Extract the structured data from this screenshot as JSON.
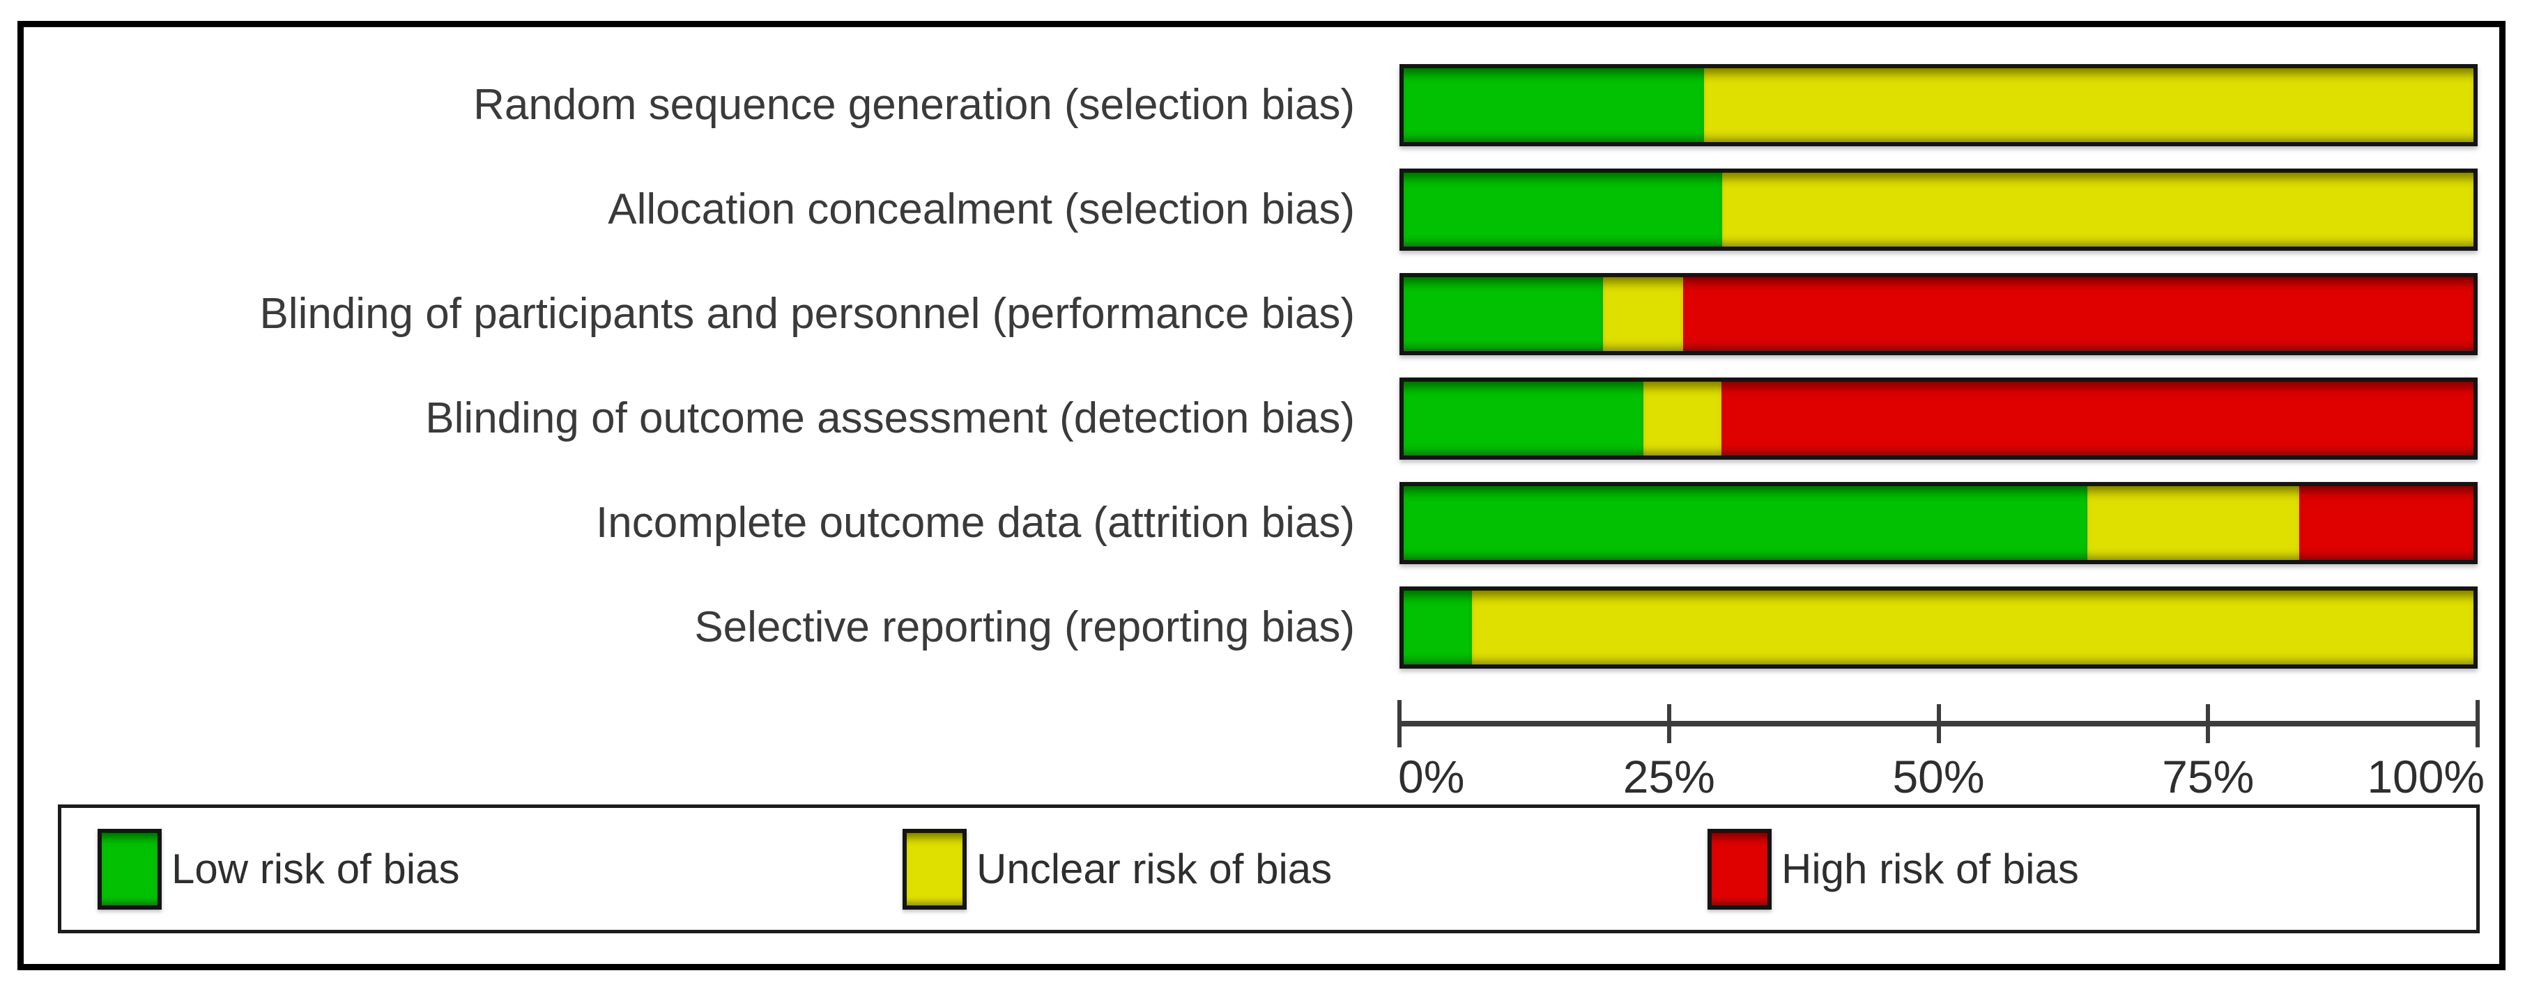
{
  "chart_data": {
    "type": "bar",
    "variant": "horizontal-stacked",
    "title": "",
    "xlabel": "",
    "ylabel": "",
    "categories": [
      "Random sequence generation (selection bias)",
      "Allocation concealment (selection bias)",
      "Blinding of participants and personnel (performance bias)",
      "Blinding of outcome assessment (detection bias)",
      "Incomplete outcome data (attrition bias)",
      "Selective reporting (reporting bias)"
    ],
    "series": [
      {
        "name": "Low risk of bias",
        "color": "#02c102",
        "values": [
          28.1,
          29.8,
          18.6,
          22.4,
          63.9,
          6.4
        ]
      },
      {
        "name": "Unclear risk of bias",
        "color": "#dfdf00",
        "values": [
          71.9,
          70.2,
          7.5,
          7.3,
          19.8,
          93.6
        ]
      },
      {
        "name": "High risk of bias",
        "color": "#df0000",
        "values": [
          0,
          0,
          73.9,
          70.3,
          16.3,
          0
        ]
      }
    ],
    "x_axis": {
      "min": 0,
      "max": 100,
      "unit": "percent",
      "ticks": [
        "0%",
        "25%",
        "50%",
        "75%",
        "100%"
      ],
      "grid": false
    },
    "legend": [
      {
        "label": "Low risk of bias",
        "color": "#02c102"
      },
      {
        "label": "Unclear risk of bias",
        "color": "#dfdf00"
      },
      {
        "label": "High risk of bias",
        "color": "#df0000"
      }
    ],
    "legend_position": "bottom"
  }
}
